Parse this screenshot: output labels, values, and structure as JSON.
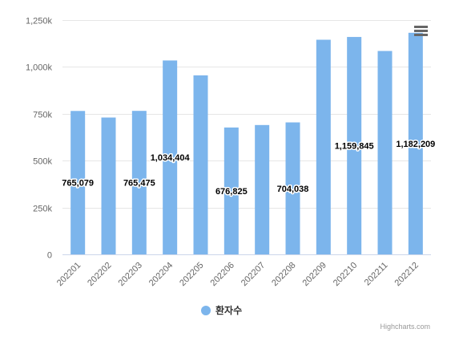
{
  "chart_data": {
    "type": "bar",
    "categories": [
      "202201",
      "202202",
      "202203",
      "202204",
      "202205",
      "202206",
      "202207",
      "202208",
      "202209",
      "202210",
      "202211",
      "202212"
    ],
    "series": [
      {
        "name": "환자수",
        "values": [
          765079,
          730000,
          765475,
          1034404,
          955000,
          676825,
          690000,
          704038,
          1145000,
          1159845,
          1085000,
          1182209
        ]
      }
    ],
    "data_labels": [
      "765,079",
      "",
      "765,475",
      "1,034,404",
      "",
      "676,825",
      "",
      "704,038",
      "",
      "1,159,845",
      "",
      "1,182,209"
    ],
    "y_ticks": [
      "0",
      "250k",
      "500k",
      "750k",
      "1,000k",
      "1,250k"
    ],
    "ylim": [
      0,
      1250000
    ],
    "grid": true,
    "legend_position": "bottom-center",
    "bar_color": "#7cb5ec",
    "title": "",
    "xlabel": "",
    "ylabel": ""
  },
  "credits": "Highcharts.com",
  "menu_icon": "hamburger-menu-icon"
}
